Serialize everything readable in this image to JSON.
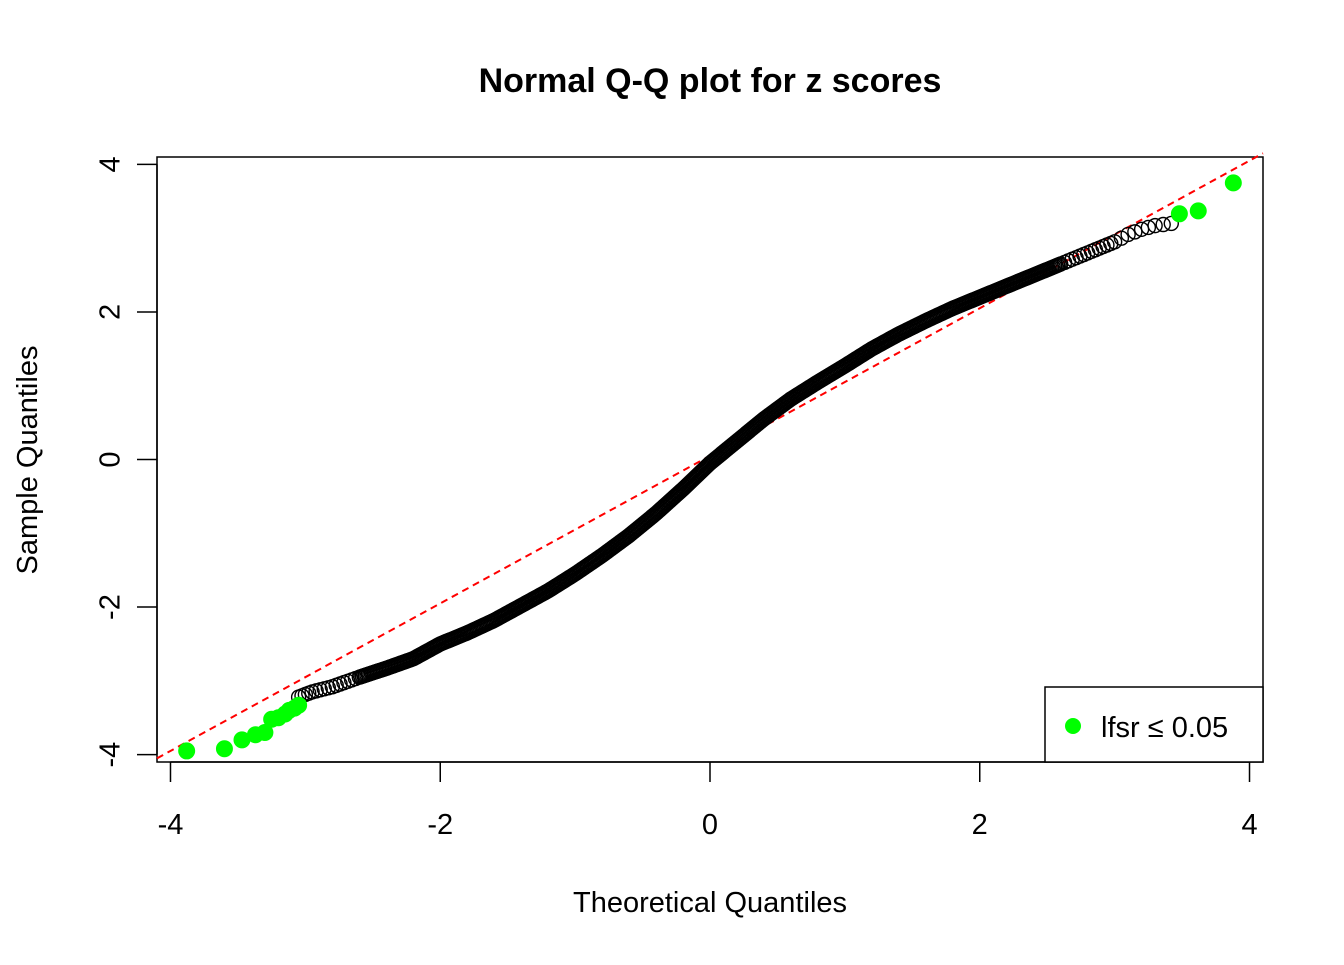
{
  "chart_data": {
    "type": "scatter",
    "title": "Normal Q-Q plot for z scores",
    "xlabel": "Theoretical Quantiles",
    "ylabel": "Sample Quantiles",
    "xlim": [
      -4.1,
      4.1
    ],
    "ylim": [
      -4.1,
      4.1
    ],
    "x_ticks": [
      -4,
      -2,
      0,
      2,
      4
    ],
    "y_ticks": [
      -4,
      -2,
      0,
      2,
      4
    ],
    "x_tick_labels": [
      "-4",
      "-2",
      "0",
      "2",
      "4"
    ],
    "y_tick_labels": [
      "-4",
      "-2",
      "0",
      "2",
      "4"
    ],
    "grid": false,
    "legend_position": "bottom-right",
    "reference_line": {
      "style": "dashed",
      "color": "#ff0000",
      "intercept": 0.05,
      "slope": 1.0
    },
    "curve": {
      "description": "open black circles, approximately continuous sample quantiles",
      "color": "#000000",
      "points": [
        [
          -3.05,
          -3.22
        ],
        [
          -2.95,
          -3.15
        ],
        [
          -2.8,
          -3.08
        ],
        [
          -2.6,
          -2.95
        ],
        [
          -2.4,
          -2.83
        ],
        [
          -2.2,
          -2.7
        ],
        [
          -2.0,
          -2.5
        ],
        [
          -1.8,
          -2.35
        ],
        [
          -1.6,
          -2.18
        ],
        [
          -1.4,
          -1.98
        ],
        [
          -1.2,
          -1.78
        ],
        [
          -1.0,
          -1.55
        ],
        [
          -0.8,
          -1.3
        ],
        [
          -0.6,
          -1.03
        ],
        [
          -0.4,
          -0.73
        ],
        [
          -0.2,
          -0.4
        ],
        [
          0.0,
          -0.05
        ],
        [
          0.2,
          0.25
        ],
        [
          0.4,
          0.55
        ],
        [
          0.6,
          0.82
        ],
        [
          0.8,
          1.05
        ],
        [
          1.0,
          1.27
        ],
        [
          1.2,
          1.5
        ],
        [
          1.4,
          1.7
        ],
        [
          1.6,
          1.88
        ],
        [
          1.8,
          2.05
        ],
        [
          2.0,
          2.2
        ],
        [
          2.2,
          2.35
        ],
        [
          2.4,
          2.5
        ],
        [
          2.6,
          2.65
        ],
        [
          2.8,
          2.8
        ],
        [
          3.0,
          2.95
        ],
        [
          3.1,
          3.05
        ],
        [
          3.2,
          3.12
        ],
        [
          3.3,
          3.17
        ],
        [
          3.42,
          3.2
        ]
      ]
    },
    "series": [
      {
        "name": "lfsr ≤ 0.05",
        "color": "#00ff00",
        "points": [
          [
            -3.88,
            -3.95
          ],
          [
            -3.6,
            -3.92
          ],
          [
            -3.47,
            -3.8
          ],
          [
            -3.37,
            -3.73
          ],
          [
            -3.3,
            -3.7
          ],
          [
            -3.25,
            -3.52
          ],
          [
            -3.2,
            -3.5
          ],
          [
            -3.15,
            -3.45
          ],
          [
            -3.12,
            -3.4
          ],
          [
            -3.08,
            -3.37
          ],
          [
            -3.05,
            -3.33
          ],
          [
            3.48,
            3.33
          ],
          [
            3.62,
            3.37
          ],
          [
            3.88,
            3.75
          ]
        ]
      }
    ],
    "legend": {
      "symbol_color": "#00ff00",
      "label": "lfsr  ≤ 0.05"
    }
  }
}
